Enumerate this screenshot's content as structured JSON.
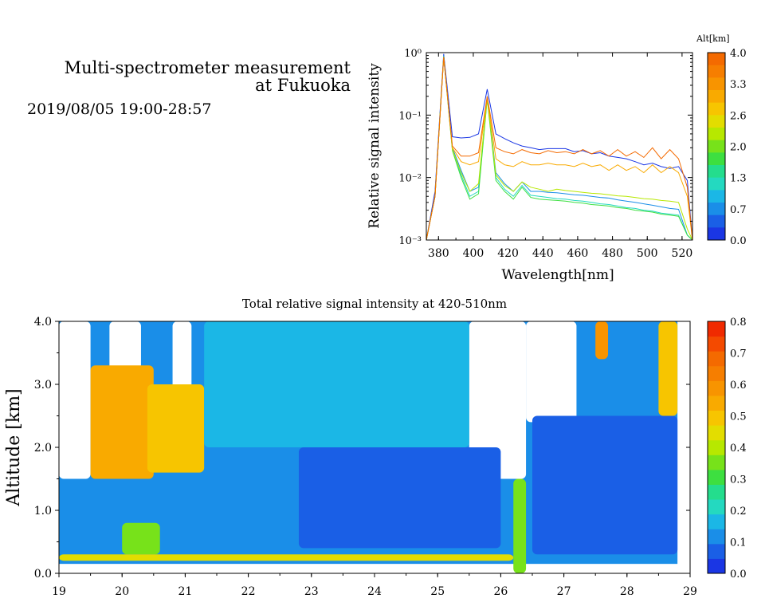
{
  "header": {
    "title_line1": "Multi-spectrometer measurement",
    "title_line2": "at Fukuoka",
    "period": "2019/08/05 19:00-28:57"
  },
  "chart_data": [
    {
      "type": "line",
      "ylabel": "Relative signal intensity",
      "xlabel": "Wavelength[nm]",
      "yscale": "log",
      "ylim": [
        0.001,
        1
      ],
      "xlim": [
        373,
        526
      ],
      "xticks": [
        "380",
        "400",
        "420",
        "440",
        "460",
        "480",
        "500",
        "520"
      ],
      "yticks": [
        "10⁻³",
        "10⁻²",
        "10⁻¹",
        "10⁰"
      ],
      "colorbar": {
        "title": "Alt[km]",
        "ticks": [
          "4.0",
          "3.3",
          "2.6",
          "2.0",
          "1.3",
          "0.7",
          "0.0"
        ],
        "levels": [
          "#f46a00",
          "#f67e00",
          "#f89400",
          "#f9aa00",
          "#f7c500",
          "#e3dd00",
          "#b7e800",
          "#77e21a",
          "#3ddf40",
          "#24dd8d",
          "#24d9c0",
          "#1bb7e6",
          "#1a8ee8",
          "#1a5fe6",
          "#1a36e4"
        ]
      },
      "x": [
        373,
        378,
        383,
        388,
        393,
        398,
        403,
        408,
        413,
        418,
        423,
        428,
        433,
        438,
        443,
        448,
        453,
        458,
        463,
        468,
        473,
        478,
        483,
        488,
        493,
        498,
        503,
        508,
        513,
        518,
        523,
        526
      ],
      "series": [
        {
          "color": "#1a36e4",
          "values": [
            0.001,
            0.006,
            0.95,
            0.045,
            0.043,
            0.044,
            0.05,
            0.26,
            0.05,
            0.042,
            0.036,
            0.032,
            0.03,
            0.028,
            0.029,
            0.029,
            0.029,
            0.026,
            0.027,
            0.024,
            0.025,
            0.022,
            0.021,
            0.02,
            0.018,
            0.016,
            0.017,
            0.015,
            0.014,
            0.015,
            0.009,
            0.001
          ]
        },
        {
          "color": "#1a8ee8",
          "values": [
            0.001,
            0.005,
            0.9,
            0.03,
            0.013,
            0.006,
            0.007,
            0.2,
            0.012,
            0.008,
            0.006,
            0.0085,
            0.006,
            0.006,
            0.0058,
            0.0057,
            0.0055,
            0.0053,
            0.0052,
            0.005,
            0.0048,
            0.0047,
            0.0044,
            0.0042,
            0.004,
            0.0038,
            0.0036,
            0.0034,
            0.0032,
            0.0031,
            0.0012,
            0.001
          ]
        },
        {
          "color": "#24d9c0",
          "values": [
            0.001,
            0.005,
            0.88,
            0.028,
            0.011,
            0.005,
            0.006,
            0.19,
            0.01,
            0.0065,
            0.005,
            0.0075,
            0.0052,
            0.005,
            0.0048,
            0.0046,
            0.0045,
            0.0043,
            0.0042,
            0.004,
            0.0038,
            0.0037,
            0.0035,
            0.0033,
            0.0032,
            0.003,
            0.0029,
            0.0027,
            0.0026,
            0.0025,
            0.0012,
            0.001
          ]
        },
        {
          "color": "#3ddf40",
          "values": [
            0.001,
            0.005,
            0.86,
            0.027,
            0.01,
            0.0045,
            0.0055,
            0.18,
            0.009,
            0.006,
            0.0045,
            0.007,
            0.0048,
            0.0045,
            0.0044,
            0.0043,
            0.0042,
            0.004,
            0.0039,
            0.0037,
            0.0036,
            0.0035,
            0.0033,
            0.0032,
            0.003,
            0.0029,
            0.0028,
            0.0026,
            0.0025,
            0.0024,
            0.0012,
            0.001
          ]
        },
        {
          "color": "#b7e800",
          "values": [
            0.001,
            0.005,
            0.85,
            0.028,
            0.012,
            0.006,
            0.008,
            0.19,
            0.011,
            0.0075,
            0.006,
            0.0085,
            0.007,
            0.0065,
            0.006,
            0.0065,
            0.0062,
            0.006,
            0.0058,
            0.0056,
            0.0055,
            0.0053,
            0.0051,
            0.005,
            0.0048,
            0.0046,
            0.0045,
            0.0043,
            0.0042,
            0.004,
            0.0015,
            0.001
          ]
        },
        {
          "color": "#f9aa00",
          "values": [
            0.001,
            0.005,
            0.85,
            0.03,
            0.018,
            0.016,
            0.018,
            0.19,
            0.02,
            0.016,
            0.015,
            0.018,
            0.016,
            0.016,
            0.017,
            0.016,
            0.016,
            0.015,
            0.017,
            0.015,
            0.016,
            0.013,
            0.016,
            0.013,
            0.015,
            0.012,
            0.016,
            0.012,
            0.015,
            0.012,
            0.005,
            0.001
          ]
        },
        {
          "color": "#f46a00",
          "values": [
            0.001,
            0.005,
            0.85,
            0.032,
            0.022,
            0.022,
            0.025,
            0.2,
            0.03,
            0.026,
            0.024,
            0.028,
            0.025,
            0.024,
            0.027,
            0.025,
            0.026,
            0.024,
            0.028,
            0.024,
            0.027,
            0.022,
            0.028,
            0.022,
            0.026,
            0.021,
            0.03,
            0.02,
            0.028,
            0.02,
            0.007,
            0.001
          ]
        }
      ]
    },
    {
      "type": "heatmap",
      "title": "Total relative signal intensity at 420-510nm",
      "ylabel": "Altitude [km]",
      "xlabel": "",
      "xlim": [
        19,
        29
      ],
      "ylim": [
        0,
        4
      ],
      "xticks": [
        "19",
        "20",
        "21",
        "22",
        "23",
        "24",
        "25",
        "26",
        "27",
        "28",
        "29"
      ],
      "yticks": [
        "0.0",
        "1.0",
        "2.0",
        "3.0",
        "4.0"
      ],
      "colorbar": {
        "ticks": [
          "0.8",
          "0.7",
          "0.6",
          "0.5",
          "0.4",
          "0.3",
          "0.2",
          "0.1",
          "0.0"
        ],
        "range": [
          0,
          0.8
        ],
        "stops": [
          "#1a36e4",
          "#1a5fe6",
          "#1a8ee8",
          "#1bb7e6",
          "#24d9c0",
          "#24dd8d",
          "#3ddf40",
          "#77e21a",
          "#b7e800",
          "#e3dd00",
          "#f7c500",
          "#f9aa00",
          "#f89400",
          "#f67e00",
          "#f46a00",
          "#f44a00",
          "#f02a00"
        ]
      },
      "regions": [
        {
          "x": [
            19.0,
            19.5
          ],
          "y": [
            1.5,
            4.0
          ],
          "value": 0.85
        },
        {
          "x": [
            19.8,
            20.3
          ],
          "y": [
            2.6,
            4.0
          ],
          "value": 0.85
        },
        {
          "x": [
            20.8,
            21.1
          ],
          "y": [
            2.7,
            4.0
          ],
          "value": 0.85
        },
        {
          "x": [
            25.5,
            26.4
          ],
          "y": [
            1.5,
            4.0
          ],
          "value": 0.85
        },
        {
          "x": [
            26.4,
            27.2
          ],
          "y": [
            2.4,
            4.0
          ],
          "value": 0.85
        },
        {
          "x": [
            19.5,
            20.5
          ],
          "y": [
            1.5,
            3.3
          ],
          "value": 0.55
        },
        {
          "x": [
            20.4,
            21.3
          ],
          "y": [
            1.6,
            3.0
          ],
          "value": 0.5
        },
        {
          "x": [
            27.5,
            27.7
          ],
          "y": [
            3.4,
            4.0
          ],
          "value": 0.6
        },
        {
          "x": [
            28.5,
            28.8
          ],
          "y": [
            2.5,
            4.0
          ],
          "value": 0.5
        },
        {
          "x": [
            20.0,
            20.6
          ],
          "y": [
            0.3,
            0.8
          ],
          "value": 0.35
        },
        {
          "x": [
            19.0,
            26.2
          ],
          "y": [
            0.2,
            0.3
          ],
          "value": 0.45
        },
        {
          "x": [
            26.2,
            26.4
          ],
          "y": [
            0.0,
            1.5
          ],
          "value": 0.35
        },
        {
          "x": [
            22.8,
            26.0
          ],
          "y": [
            0.4,
            2.0
          ],
          "value": 0.07
        },
        {
          "x": [
            26.5,
            28.8
          ],
          "y": [
            0.3,
            2.5
          ],
          "value": 0.05
        },
        {
          "x": [
            21.3,
            25.5
          ],
          "y": [
            2.0,
            4.0
          ],
          "value": 0.15
        }
      ]
    }
  ]
}
